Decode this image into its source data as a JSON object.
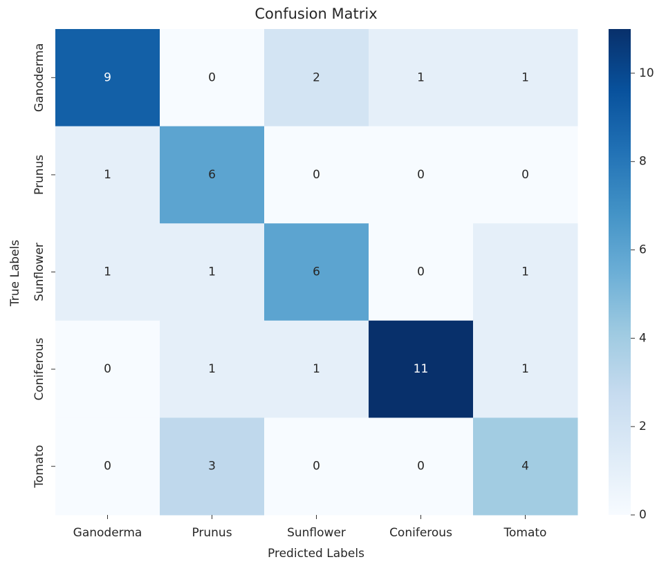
{
  "chart_data": {
    "type": "heatmap",
    "title": "Confusion Matrix",
    "x_label": "Predicted Labels",
    "y_label": "True Labels",
    "x_categories": [
      "Ganoderma",
      "Prunus",
      "Sunflower",
      "Coniferous",
      "Tomato"
    ],
    "y_categories": [
      "Ganoderma",
      "Prunus",
      "Sunflower",
      "Coniferous",
      "Tomato"
    ],
    "values": [
      [
        9,
        0,
        2,
        1,
        1
      ],
      [
        1,
        6,
        0,
        0,
        0
      ],
      [
        1,
        1,
        6,
        0,
        1
      ],
      [
        0,
        1,
        1,
        11,
        1
      ],
      [
        0,
        3,
        0,
        0,
        4
      ]
    ],
    "colormap": "Blues",
    "zlim": [
      0,
      11
    ],
    "zticks": [
      0,
      2,
      4,
      6,
      8,
      10
    ]
  }
}
